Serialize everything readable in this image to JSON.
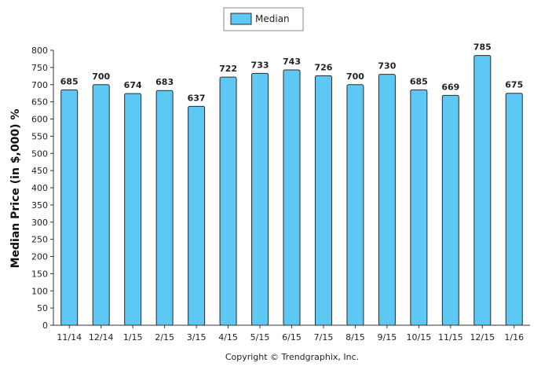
{
  "chart_data": {
    "type": "bar",
    "categories": [
      "11/14",
      "12/14",
      "1/15",
      "2/15",
      "3/15",
      "4/15",
      "5/15",
      "6/15",
      "7/15",
      "8/15",
      "9/15",
      "10/15",
      "11/15",
      "12/15",
      "1/16"
    ],
    "series": [
      {
        "name": "Median",
        "values": [
          685,
          700,
          674,
          683,
          637,
          722,
          733,
          743,
          726,
          700,
          730,
          685,
          669,
          785,
          675
        ]
      }
    ],
    "xlabel": "",
    "ylabel": "Median Price (in $,000) %",
    "ylim": [
      0,
      800
    ],
    "yticks": [
      0,
      50,
      100,
      150,
      200,
      250,
      300,
      350,
      400,
      450,
      500,
      550,
      600,
      650,
      700,
      750,
      800
    ],
    "grid": false,
    "legend_position": "top-center",
    "bar_color": "#5ec8f5",
    "bar_edge_color": "#2a2a2a"
  },
  "footer": {
    "copyright": "Copyright © Trendgraphix, Inc."
  }
}
